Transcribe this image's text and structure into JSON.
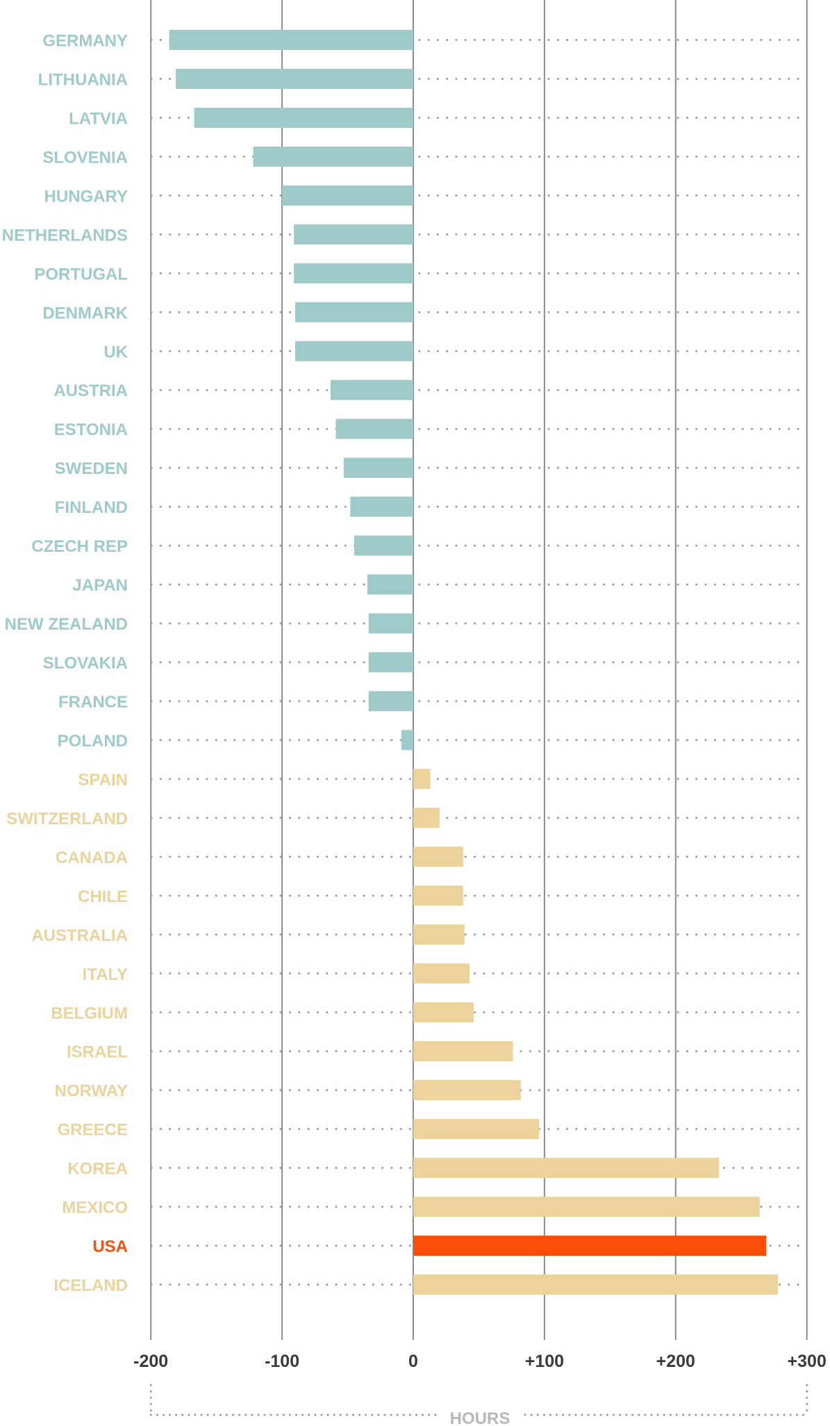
{
  "chart_data": {
    "type": "bar",
    "orientation": "horizontal",
    "categories": [
      "GERMANY",
      "LITHUANIA",
      "LATVIA",
      "SLOVENIA",
      "HUNGARY",
      "NETHERLANDS",
      "PORTUGAL",
      "DENMARK",
      "UK",
      "AUSTRIA",
      "ESTONIA",
      "SWEDEN",
      "FINLAND",
      "CZECH REP",
      "JAPAN",
      "NEW ZEALAND",
      "SLOVAKIA",
      "FRANCE",
      "POLAND",
      "SPAIN",
      "SWITZERLAND",
      "CANADA",
      "CHILE",
      "AUSTRALIA",
      "ITALY",
      "BELGIUM",
      "ISRAEL",
      "NORWAY",
      "GREECE",
      "KOREA",
      "MEXICO",
      "USA",
      "ICELAND"
    ],
    "values": [
      -186,
      -181,
      -167,
      -122,
      -100,
      -91,
      -91,
      -90,
      -90,
      -63,
      -59,
      -53,
      -48,
      -45,
      -35,
      -34,
      -34,
      -34,
      -9,
      13,
      20,
      38,
      38,
      39,
      43,
      46,
      76,
      82,
      96,
      233,
      264,
      269,
      278
    ],
    "highlight": "USA",
    "xlim": [
      -200,
      300
    ],
    "ticks": [
      -200,
      -100,
      0,
      100,
      200,
      300
    ],
    "tick_labels": [
      "-200",
      "-100",
      "0",
      "+100",
      "+200",
      "+300"
    ],
    "xlabel": "HOURS",
    "colors": {
      "negative": "#9ecbca",
      "positive": "#ebd39b",
      "highlight": "#fc4e08",
      "gridline": "#8a8a8a",
      "dotted": "#9a9a9a",
      "tick_label": "#3a3a3a",
      "unit_label": "#b8b8b8"
    }
  }
}
